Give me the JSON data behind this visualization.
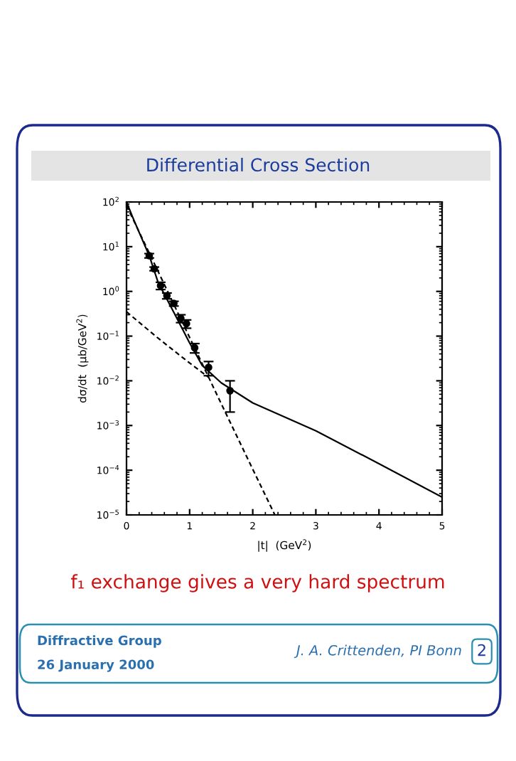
{
  "chart_data": {
    "type": "scatter",
    "title": "Differential Cross Section",
    "xlabel": "|t|  (GeV$^{2}$)",
    "ylabel": "dσ/dt  (μb/GeV$^{2}$)",
    "log": "y",
    "xlim": [
      0,
      5
    ],
    "ylim": [
      1e-05,
      100
    ],
    "xticks": [
      0,
      1,
      2,
      3,
      4,
      5
    ],
    "yticks": [
      {
        "value": 1e-05,
        "label": "10$^{−5}$"
      },
      {
        "value": 0.0001,
        "label": "10$^{−4}$"
      },
      {
        "value": 0.001,
        "label": "10$^{−3}$"
      },
      {
        "value": 0.01,
        "label": "10$^{−2}$"
      },
      {
        "value": 0.1,
        "label": "10$^{−1}$"
      },
      {
        "value": 1,
        "label": "10$^{0}$"
      },
      {
        "value": 10,
        "label": "10$^{1}$"
      },
      {
        "value": 100,
        "label": "10$^{2}$"
      }
    ],
    "grid": false,
    "series": [
      {
        "color": "#000000",
        "marker": "circle",
        "x": [
          0.36,
          0.44,
          0.54,
          0.64,
          0.75,
          0.86,
          0.95,
          1.08,
          1.3,
          1.64
        ],
        "values": [
          6.3,
          3.2,
          1.35,
          0.8,
          0.54,
          0.25,
          0.19,
          0.055,
          0.02,
          0.006
        ],
        "errors": [
          [
            5.6,
            7.0
          ],
          [
            2.9,
            3.5
          ],
          [
            1.1,
            1.6
          ],
          [
            0.68,
            0.92
          ],
          [
            0.47,
            0.6
          ],
          [
            0.2,
            0.3
          ],
          [
            0.15,
            0.23
          ],
          [
            0.042,
            0.068
          ],
          [
            0.013,
            0.027
          ],
          [
            0.002,
            0.01
          ]
        ]
      },
      {
        "type": "line",
        "color": "#000000",
        "line_style": "solid",
        "x": [
          0,
          0.1,
          0.2,
          0.36,
          0.5,
          0.75,
          1.0,
          1.2,
          1.5,
          2,
          3,
          4,
          5
        ],
        "values": [
          100,
          45,
          21,
          6.3,
          1.6,
          0.34,
          0.07,
          0.022,
          0.009,
          0.0032,
          0.00076,
          0.00014,
          2.5e-05
        ]
      },
      {
        "type": "line",
        "color": "#000000",
        "line_style": "dashed",
        "x": [
          0,
          0.5,
          1.0,
          1.5,
          2.0,
          2.35
        ],
        "values": [
          83,
          2.8,
          0.093,
          0.0031,
          0.000105,
          1e-05
        ]
      },
      {
        "type": "line",
        "color": "#000000",
        "line_style": "dashed",
        "x": [
          0,
          0.5,
          1.0,
          1.3
        ],
        "values": [
          0.35,
          0.09,
          0.025,
          0.012
        ]
      }
    ],
    "annotations": [
      "f₁ exchange gives a very hard spectrum",
      "Diffractive Group",
      "26 January 2000",
      "J. A. Crittenden, PI Bonn",
      "2"
    ]
  }
}
